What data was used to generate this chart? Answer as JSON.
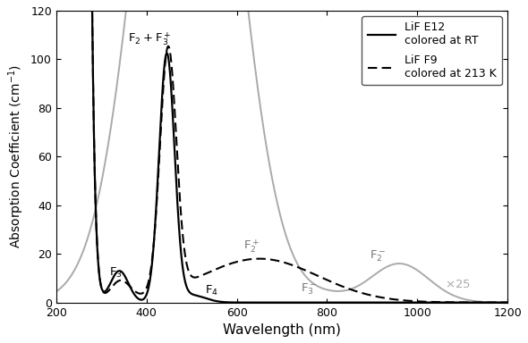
{
  "xlim": [
    200,
    1200
  ],
  "ylim": [
    0,
    120
  ],
  "xlabel": "Wavelength (nm)",
  "ylabel": "Absorption Coefficient (cm$^{-1}$)",
  "background_color": "#ffffff",
  "line_color_black": "#000000",
  "line_color_gray": "#aaaaaa",
  "xticks": [
    200,
    400,
    600,
    800,
    1000,
    1200
  ],
  "yticks": [
    0,
    20,
    40,
    60,
    80,
    100,
    120
  ]
}
